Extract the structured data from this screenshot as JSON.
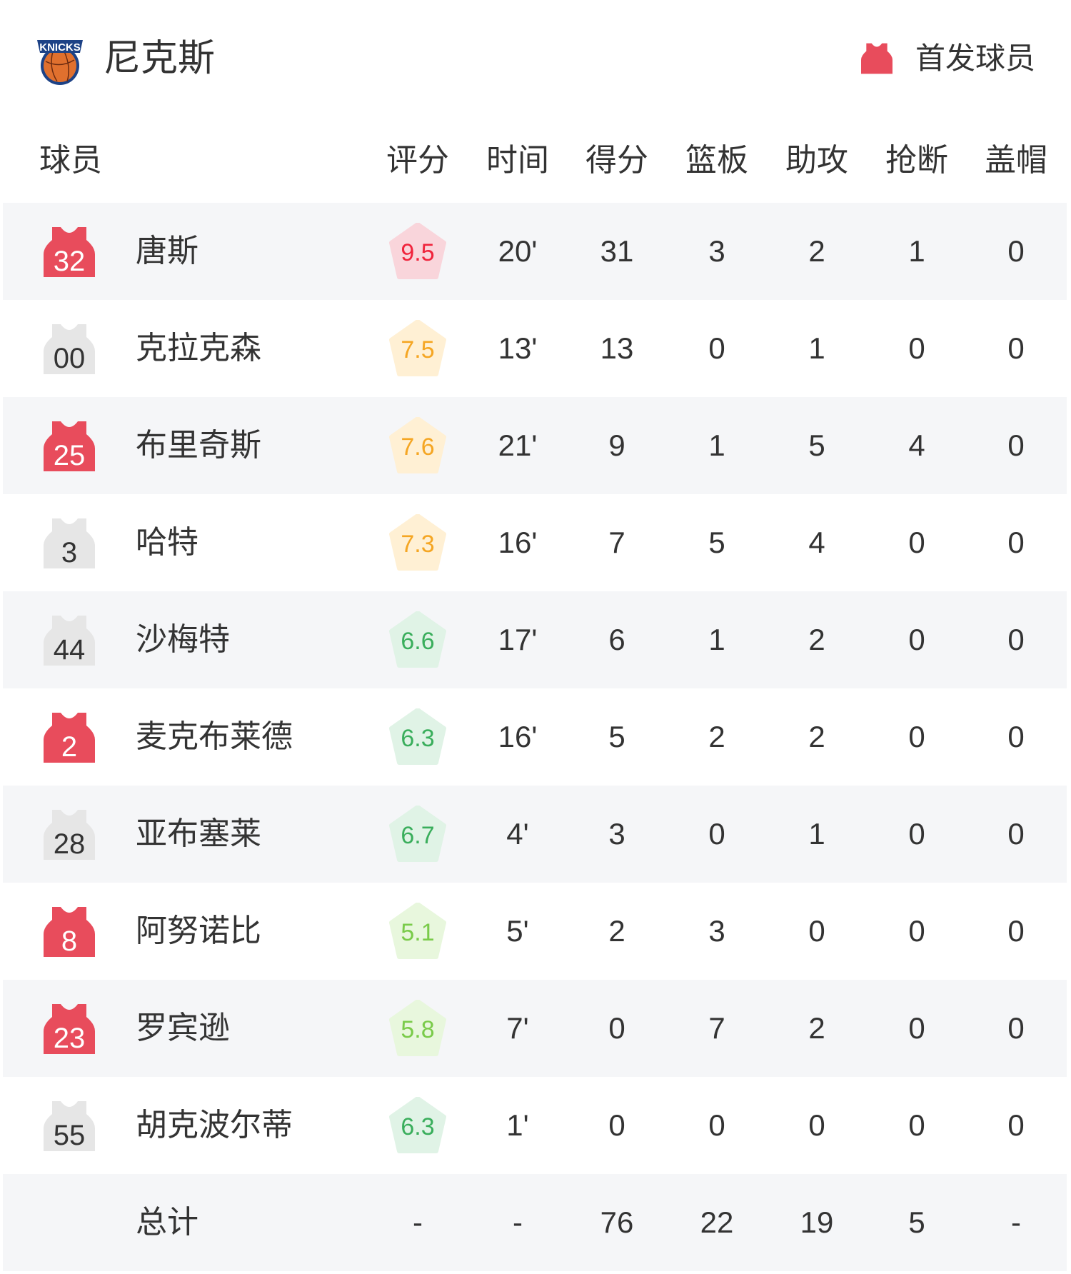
{
  "team": {
    "name": "尼克斯",
    "logo_text": "KNICKS"
  },
  "legend": {
    "label": "首发球员",
    "icon": "jersey-icon",
    "color": "#e84c5c"
  },
  "columns": [
    "球员",
    "评分",
    "时间",
    "得分",
    "篮板",
    "助攻",
    "抢断",
    "盖帽"
  ],
  "colors": {
    "starter_jersey": "#e84c5c",
    "bench_jersey": "#e6e6e6",
    "row_alt": "#f5f6f8"
  },
  "players": [
    {
      "number": "32",
      "name": "唐斯",
      "starter": true,
      "rating": "9.5",
      "time": "20'",
      "pts": "31",
      "reb": "3",
      "ast": "2",
      "stl": "1",
      "blk": "0"
    },
    {
      "number": "00",
      "name": "克拉克森",
      "starter": false,
      "rating": "7.5",
      "time": "13'",
      "pts": "13",
      "reb": "0",
      "ast": "1",
      "stl": "0",
      "blk": "0"
    },
    {
      "number": "25",
      "name": "布里奇斯",
      "starter": true,
      "rating": "7.6",
      "time": "21'",
      "pts": "9",
      "reb": "1",
      "ast": "5",
      "stl": "4",
      "blk": "0"
    },
    {
      "number": "3",
      "name": "哈特",
      "starter": false,
      "rating": "7.3",
      "time": "16'",
      "pts": "7",
      "reb": "5",
      "ast": "4",
      "stl": "0",
      "blk": "0"
    },
    {
      "number": "44",
      "name": "沙梅特",
      "starter": false,
      "rating": "6.6",
      "time": "17'",
      "pts": "6",
      "reb": "1",
      "ast": "2",
      "stl": "0",
      "blk": "0"
    },
    {
      "number": "2",
      "name": "麦克布莱德",
      "starter": true,
      "rating": "6.3",
      "time": "16'",
      "pts": "5",
      "reb": "2",
      "ast": "2",
      "stl": "0",
      "blk": "0"
    },
    {
      "number": "28",
      "name": "亚布塞莱",
      "starter": false,
      "rating": "6.7",
      "time": "4'",
      "pts": "3",
      "reb": "0",
      "ast": "1",
      "stl": "0",
      "blk": "0"
    },
    {
      "number": "8",
      "name": "阿努诺比",
      "starter": true,
      "rating": "5.1",
      "time": "5'",
      "pts": "2",
      "reb": "3",
      "ast": "0",
      "stl": "0",
      "blk": "0"
    },
    {
      "number": "23",
      "name": "罗宾逊",
      "starter": true,
      "rating": "5.8",
      "time": "7'",
      "pts": "0",
      "reb": "7",
      "ast": "2",
      "stl": "0",
      "blk": "0"
    },
    {
      "number": "55",
      "name": "胡克波尔蒂",
      "starter": false,
      "rating": "6.3",
      "time": "1'",
      "pts": "0",
      "reb": "0",
      "ast": "0",
      "stl": "0",
      "blk": "0"
    }
  ],
  "total": {
    "label": "总计",
    "rating": "-",
    "time": "-",
    "pts": "76",
    "reb": "22",
    "ast": "19",
    "stl": "5",
    "blk": "-"
  }
}
